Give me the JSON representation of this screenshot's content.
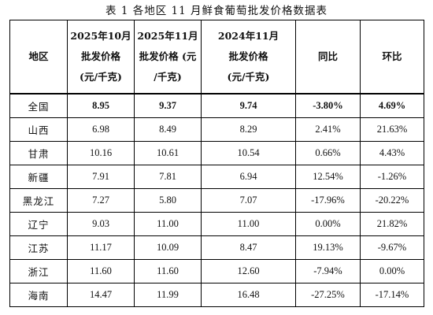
{
  "caption": "表 1 各地区 11 月鲜食葡萄批发价格数据表",
  "headers": {
    "region": "地区",
    "col1": [
      "2025年10月",
      "批发价格",
      "(元/千克)"
    ],
    "col2": [
      "2025年11月",
      "批发价格 (元",
      "/千克)"
    ],
    "col3": [
      "2024年11月",
      "批发价格",
      "(元/千克)"
    ],
    "yoy": "同比",
    "mom": "环比"
  },
  "rows": [
    {
      "region": "全国",
      "oct2025": "8.95",
      "nov2025": "9.37",
      "nov2024": "9.74",
      "yoy": "-3.80%",
      "mom": "4.69%"
    },
    {
      "region": "山西",
      "oct2025": "6.98",
      "nov2025": "8.49",
      "nov2024": "8.29",
      "yoy": "2.41%",
      "mom": "21.63%"
    },
    {
      "region": "甘肃",
      "oct2025": "10.16",
      "nov2025": "10.61",
      "nov2024": "10.54",
      "yoy": "0.66%",
      "mom": "4.43%"
    },
    {
      "region": "新疆",
      "oct2025": "7.91",
      "nov2025": "7.81",
      "nov2024": "6.94",
      "yoy": "12.54%",
      "mom": "-1.26%"
    },
    {
      "region": "黑龙江",
      "oct2025": "7.27",
      "nov2025": "5.80",
      "nov2024": "7.07",
      "yoy": "-17.96%",
      "mom": "-20.22%"
    },
    {
      "region": "辽宁",
      "oct2025": "9.03",
      "nov2025": "11.00",
      "nov2024": "11.00",
      "yoy": "0.00%",
      "mom": "21.82%"
    },
    {
      "region": "江苏",
      "oct2025": "11.17",
      "nov2025": "10.09",
      "nov2024": "8.47",
      "yoy": "19.13%",
      "mom": "-9.67%"
    },
    {
      "region": "浙江",
      "oct2025": "11.60",
      "nov2025": "11.60",
      "nov2024": "12.60",
      "yoy": "-7.94%",
      "mom": "0.00%"
    },
    {
      "region": "海南",
      "oct2025": "14.47",
      "nov2025": "11.99",
      "nov2024": "16.48",
      "yoy": "-27.25%",
      "mom": "-17.14%"
    }
  ]
}
